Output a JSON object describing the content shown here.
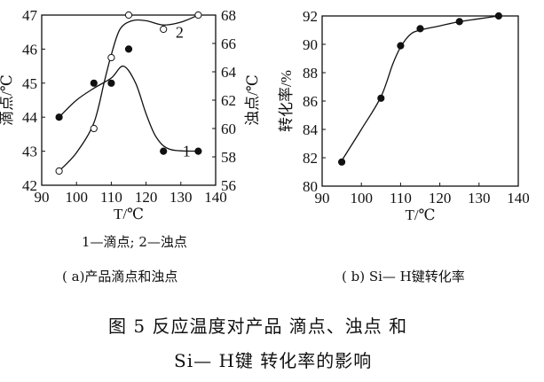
{
  "chart_data": [
    {
      "type": "line",
      "panel": "(a)",
      "caption": "( a)产品滴点和浊点",
      "legend_note": "1—滴点; 2—浊点",
      "xlabel": "T/℃",
      "ylabel_left": "滴点/℃",
      "ylabel_right": "浊点/℃",
      "xlim": [
        90,
        140
      ],
      "ylim_left": [
        42,
        47
      ],
      "ylim_right": [
        56,
        68
      ],
      "xticks": [
        90,
        100,
        110,
        120,
        130,
        140
      ],
      "yticks_left": [
        42,
        43,
        44,
        45,
        46,
        47
      ],
      "yticks_right": [
        56,
        58,
        60,
        62,
        64,
        66,
        68
      ],
      "grid": false,
      "series": [
        {
          "name": "1",
          "axis": "left",
          "marker": "filled-circle",
          "x": [
            95,
            105,
            110,
            115,
            125,
            135
          ],
          "y": [
            44,
            45,
            45,
            46,
            43,
            43
          ]
        },
        {
          "name": "2",
          "axis": "right",
          "marker": "open-circle",
          "x": [
            95,
            105,
            110,
            115,
            125,
            135
          ],
          "y": [
            57,
            60,
            65,
            68,
            67,
            68
          ]
        }
      ]
    },
    {
      "type": "line",
      "panel": "(b)",
      "caption": "( b) Si— H键转化率",
      "xlabel": "T/℃",
      "ylabel": "转化率/%",
      "xlim": [
        90,
        140
      ],
      "ylim": [
        80,
        92
      ],
      "xticks": [
        90,
        100,
        110,
        120,
        130,
        140
      ],
      "yticks": [
        80,
        82,
        84,
        86,
        88,
        90,
        92
      ],
      "grid": false,
      "series": [
        {
          "marker": "filled-circle",
          "x": [
            95,
            105,
            110,
            115,
            125,
            135
          ],
          "y": [
            81.7,
            86.2,
            89.9,
            91.1,
            91.6,
            92.0
          ]
        }
      ]
    }
  ],
  "figure": {
    "title_line1": "图 5  反应温度对产品 滴点、浊点 和",
    "title_line2": "Si— H键 转化率的影响"
  }
}
